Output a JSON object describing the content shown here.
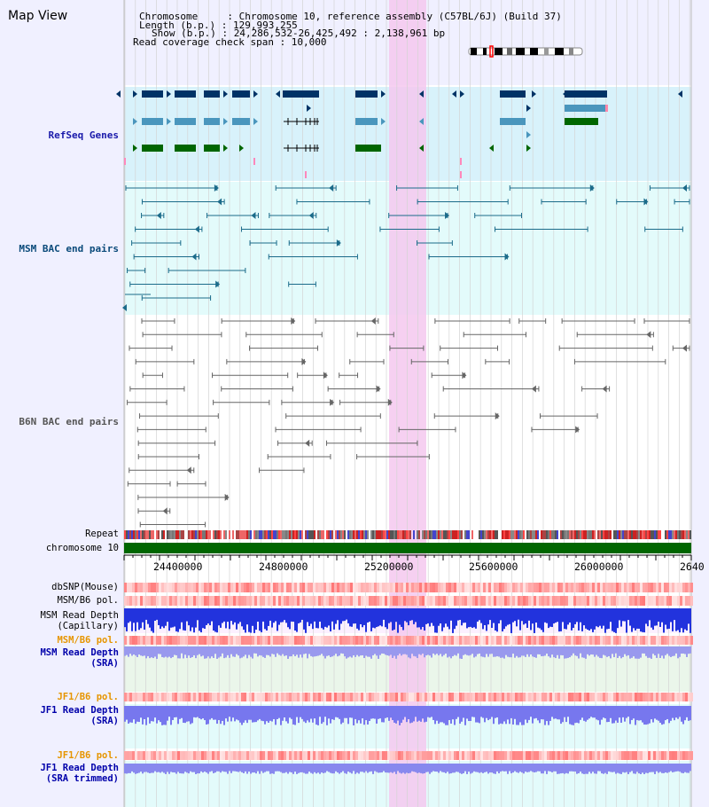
{
  "title": "Map View",
  "header": {
    "lines": [
      "Chromosome     : Chromosome 10, reference assembly (C57BL/6J) (Build 37)",
      "Length (b.p.) : 129,993,255",
      "Show (b.p.) : 24,286,532-26,425,492 : 2,138,961 bp",
      "Read coverage check span : 10,000"
    ]
  },
  "tracks": {
    "refseq": "RefSeq Genes",
    "msm_bac": "MSM BAC end pairs",
    "b6n_bac": "B6N BAC end pairs",
    "repeat": "Repeat",
    "chromosome": "chromosome 10"
  },
  "axis_ticks": [
    "24400000",
    "24800000",
    "25200000",
    "25600000",
    "26000000",
    "2640"
  ],
  "lower_tracks": {
    "dbsnp": "dbSNP(Mouse)",
    "msm_b6_pol_1": "MSM/B6 pol.",
    "msm_read_depth_cap_1": "MSM Read Depth",
    "msm_read_depth_cap_2": "(Capillary)",
    "msm_b6_pol_2": "MSM/B6 pol.",
    "msm_read_depth_sra_1": "MSM Read Depth",
    "msm_read_depth_sra_2": "(SRA)",
    "jf1_b6_pol_1": "JF1/B6 pol.",
    "jf1_read_depth_sra_1": "JF1 Read Depth",
    "jf1_read_depth_sra_2": "(SRA)",
    "jf1_b6_pol_2": "JF1/B6 pol.",
    "jf1_read_depth_trim_1": "JF1 Read Depth",
    "jf1_read_depth_trim_2": "(SRA trimmed)"
  },
  "colors": {
    "highlight": "#f5c8ee",
    "refseq_bg": "#d8f2fb",
    "msm_bg": "#e3fbfb",
    "dark_blue": "#003366",
    "teal": "#0a5c7a",
    "green": "#006600"
  }
}
